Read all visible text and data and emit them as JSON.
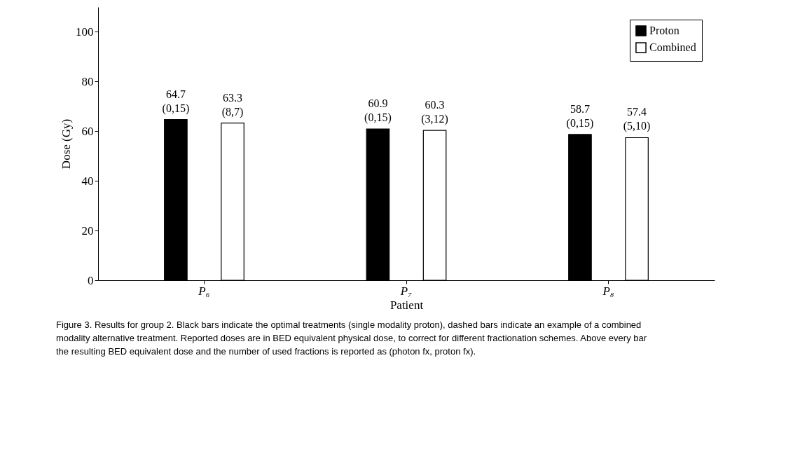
{
  "chart_data": {
    "type": "bar",
    "xlabel": "Patient",
    "ylabel": "Dose (Gy)",
    "categories": [
      "P₆",
      "P₇",
      "P₈"
    ],
    "series": [
      {
        "name": "Proton",
        "color": "#000000",
        "values": [
          64.7,
          60.9,
          58.7
        ],
        "value_labels": [
          "64.7\n(0,15)",
          "60.9\n(0,15)",
          "58.7\n(0,15)"
        ]
      },
      {
        "name": "Combined",
        "color": "#ffffff",
        "values": [
          63.3,
          60.3,
          57.4
        ],
        "value_labels": [
          "63.3\n(8,7)",
          "60.3\n(3,12)",
          "57.4\n(5,10)"
        ]
      }
    ],
    "ylim": [
      0,
      110
    ],
    "yticks": [
      0,
      20,
      40,
      60,
      80,
      100
    ],
    "grid": false,
    "legend": "top right",
    "annotations": [
      "Figure 3.  Results for group 2. Black bars indicate the optimal treatments (single modality proton), dashed bars indicate an example of a combined modality alternative treatment. Reported doses are in BED equivalent physical dose, to correct for different fractionation schemes. Above every bar the resulting BED equivalent dose and the number of used fractions is reported as (photon fx, proton fx)."
    ]
  }
}
